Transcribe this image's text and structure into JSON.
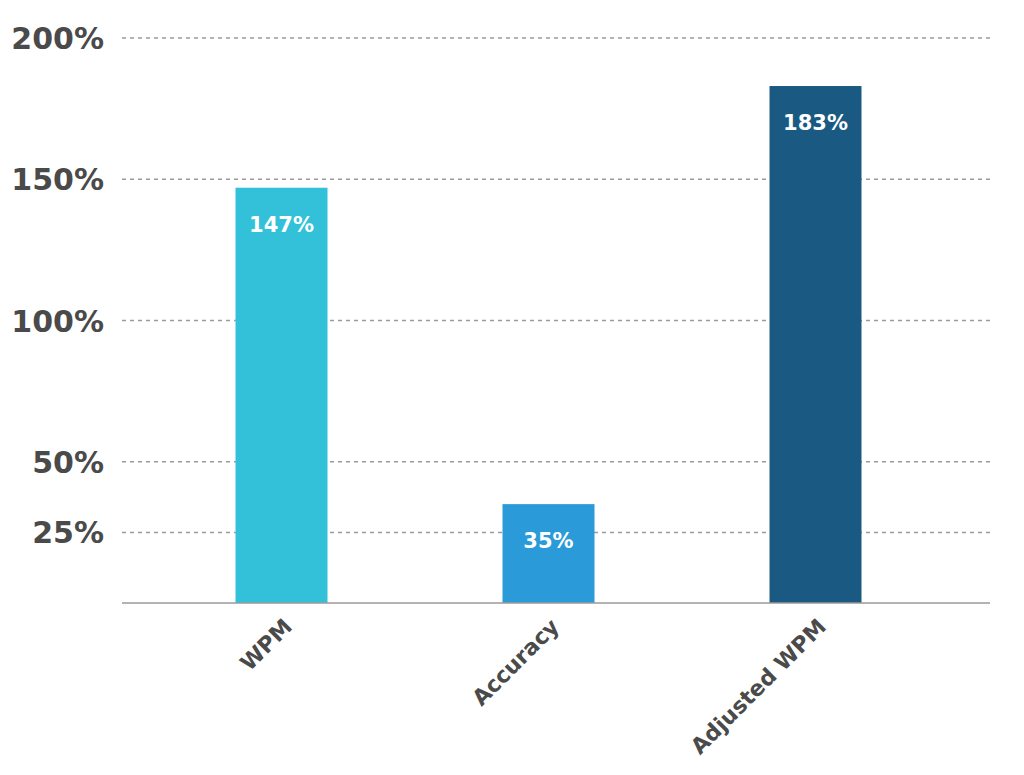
{
  "chart_data": {
    "type": "bar",
    "categories": [
      "WPM",
      "Accuracy",
      "Adjusted WPM"
    ],
    "values": [
      147,
      35,
      183
    ],
    "value_labels": [
      "147%",
      "35%",
      "183%"
    ],
    "colors": [
      "#33c1d9",
      "#2a9bd8",
      "#1a5a82"
    ],
    "ylim": [
      0,
      200
    ],
    "yticks": [
      {
        "value": 25,
        "label": "25%"
      },
      {
        "value": 50,
        "label": "50%"
      },
      {
        "value": 100,
        "label": "100%"
      },
      {
        "value": 150,
        "label": "150%"
      },
      {
        "value": 200,
        "label": "200%"
      }
    ],
    "grid": true,
    "data_labels": true
  }
}
